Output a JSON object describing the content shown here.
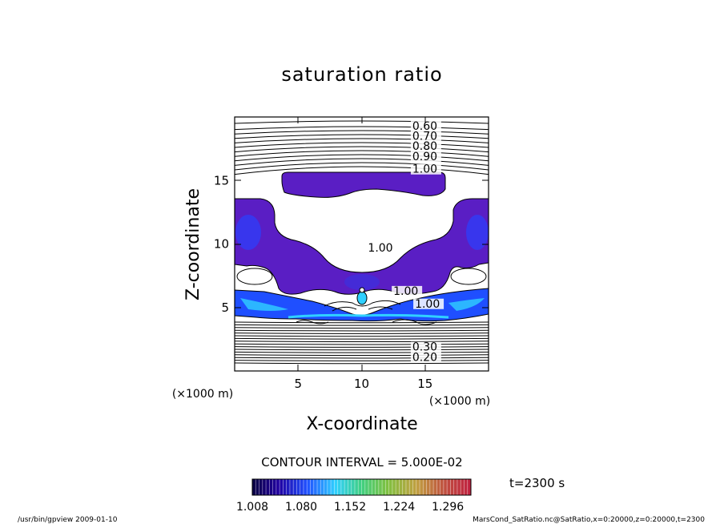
{
  "chart_data": {
    "type": "contour",
    "title": "saturation ratio",
    "xlabel": "X-coordinate",
    "ylabel": "Z-coordinate",
    "x_unit": "(×1000 m)",
    "y_unit": "(×1000 m)",
    "xlim": [
      0,
      20
    ],
    "ylim": [
      0,
      20
    ],
    "x_ticks": [
      5,
      10,
      15
    ],
    "y_ticks": [
      5,
      10,
      15
    ],
    "contour_interval_text": "CONTOUR INTERVAL = 5.000E-02",
    "time_label": "t=2300 s",
    "contour_labels": [
      {
        "text": "0.60",
        "x": 14.0,
        "z": 19.0
      },
      {
        "text": "0.70",
        "x": 14.0,
        "z": 18.2
      },
      {
        "text": "0.80",
        "x": 14.0,
        "z": 17.4
      },
      {
        "text": "0.90",
        "x": 14.0,
        "z": 16.6
      },
      {
        "text": "1.00",
        "x": 14.0,
        "z": 15.6
      },
      {
        "text": "1.00",
        "x": 10.5,
        "z": 9.4
      },
      {
        "text": "1.00",
        "x": 12.5,
        "z": 6.0
      },
      {
        "text": "1.00",
        "x": 14.2,
        "z": 5.0
      },
      {
        "text": "0.30",
        "x": 14.0,
        "z": 1.6
      },
      {
        "text": "0.20",
        "x": 14.0,
        "z": 0.8
      }
    ],
    "colorbar": {
      "ticks": [
        "1.008",
        "1.080",
        "1.152",
        "1.224",
        "1.296"
      ],
      "min": 1.008,
      "max": 1.33
    }
  },
  "footer": {
    "left": "/usr/bin/gpview   2009-01-10",
    "right": "MarsCond_SatRatio.nc@SatRatio,x=0:20000,z=0:20000,t=2300"
  }
}
